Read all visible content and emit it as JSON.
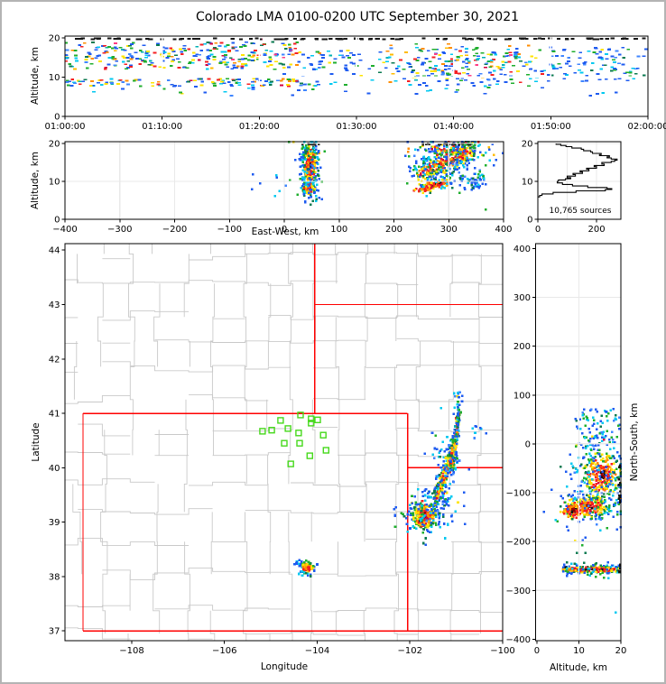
{
  "title": "Colorado LMA 0100-0200 UTC September 30, 2021",
  "labels": {
    "altitude": "Altitude, km",
    "east_west": "East-West, km",
    "latitude": "Latitude",
    "longitude": "Longitude",
    "north_south": "North-South, km",
    "sources": "10,765 sources"
  },
  "palette_colors": {
    "blue": "#1e5bf0",
    "blue2": "#3f86ff",
    "cyan": "#00c8f0",
    "teal": "#00b0b4",
    "green": "#1fae2e",
    "dgreen": "#0b7a50",
    "yellow": "#ffe400",
    "gold": "#ffbb00",
    "orange": "#ff8c00",
    "red": "#f51f22",
    "crimson": "#d40040",
    "dred": "#9e0000",
    "black": "#141414",
    "magenta": "#ff3d85"
  },
  "map_colors": {
    "county_line": "#c9c9c9",
    "state_line": "#ff0000",
    "station": "#46d91c",
    "grid": "#e9e9e9",
    "grid_white": "#ffffff",
    "frame": "#000000",
    "outer_border": "#b4b4b4"
  },
  "chart_data": [
    {
      "id": "tp",
      "type": "scatter",
      "title": "",
      "xlabel": "",
      "ylabel": "Altitude, km",
      "xlim_minutes": [
        0,
        60
      ],
      "ylim": [
        0,
        20.5
      ],
      "xticks": {
        "values": [
          0,
          10,
          20,
          30,
          40,
          50,
          60
        ],
        "labels": [
          "01:00:00",
          "01:10:00",
          "01:20:00",
          "01:30:00",
          "01:40:00",
          "01:50:00",
          "02:00:00"
        ]
      },
      "yticks": {
        "values": [
          0,
          10,
          20
        ],
        "labels": [
          "0",
          "10",
          "20"
        ]
      },
      "grid": {
        "x": [
          10,
          20,
          30,
          40,
          50
        ],
        "y": [
          10
        ],
        "white": true
      },
      "clusters": [
        {
          "kind": "uniform",
          "x0": 0,
          "x1": 24,
          "y0": 12,
          "y1": 19,
          "n": 190,
          "palette": "mix"
        },
        {
          "kind": "gauss",
          "cx": 12,
          "cy": 15.6,
          "sx": 7,
          "sy": 1.6,
          "n": 110,
          "palette": "mix"
        },
        {
          "kind": "uniform",
          "x0": 0,
          "x1": 26,
          "y0": 7.6,
          "y1": 9.6,
          "n": 120,
          "palette": "mix"
        },
        {
          "kind": "uniform",
          "x0": 24,
          "x1": 33,
          "y0": 8,
          "y1": 17,
          "n": 50,
          "palette": "cold"
        },
        {
          "kind": "uniform",
          "x0": 33,
          "x1": 50,
          "y0": 7.5,
          "y1": 18.5,
          "n": 150,
          "palette": "mix"
        },
        {
          "kind": "gauss",
          "cx": 41,
          "cy": 12.5,
          "sx": 4.5,
          "sy": 2.6,
          "n": 100,
          "palette": "mix"
        },
        {
          "kind": "uniform",
          "x0": 50,
          "x1": 60,
          "y0": 9,
          "y1": 18,
          "n": 90,
          "palette": "cold"
        },
        {
          "kind": "uniform",
          "x0": 2,
          "x1": 58,
          "y0": 5.2,
          "y1": 7.4,
          "n": 28,
          "palette": "cold"
        },
        {
          "kind": "uniform",
          "x0": 0,
          "x1": 60,
          "y0": 19.65,
          "y1": 19.95,
          "n": 115,
          "palette": "black"
        }
      ]
    },
    {
      "id": "ew",
      "type": "scatter",
      "xlabel": "East-West, km",
      "ylabel": "Altitude, km",
      "xlim": [
        -400,
        400
      ],
      "ylim": [
        0,
        20.5
      ],
      "xticks": {
        "values": [
          -400,
          -300,
          -200,
          -100,
          0,
          100,
          200,
          300,
          400
        ],
        "labels": [
          "−400",
          "−300",
          "−200",
          "−100",
          "0",
          "100",
          "200",
          "300",
          "400"
        ]
      },
      "yticks": {
        "values": [
          0,
          10,
          20
        ],
        "labels": [
          "0",
          "10",
          "20"
        ]
      },
      "grid": {
        "x": [
          -300,
          -200,
          -100,
          0,
          100,
          200,
          300
        ],
        "y": [
          10,
          20
        ],
        "white": false
      },
      "clusters": [
        {
          "kind": "gauss",
          "cx": 47,
          "cy": 14,
          "sx": 7,
          "sy": 3.2,
          "n": 290,
          "palette": "hot"
        },
        {
          "kind": "gauss",
          "cx": 45,
          "cy": 8.3,
          "sx": 6.5,
          "sy": 1.1,
          "n": 85,
          "palette": "hot"
        },
        {
          "kind": "gauss",
          "cx": 46,
          "cy": 12,
          "sx": 11,
          "sy": 4.5,
          "n": 65,
          "palette": "cold"
        },
        {
          "kind": "uniform",
          "x0": -60,
          "x1": 15,
          "y0": 6,
          "y1": 12,
          "n": 9,
          "palette": "cold"
        },
        {
          "kind": "diag",
          "x0": 248,
          "y0": 12,
          "x1": 342,
          "y1": 18.3,
          "swx": 24,
          "swy": 1.8,
          "n": 380,
          "palette": "hot"
        },
        {
          "kind": "gauss",
          "cx": 300,
          "cy": 18.7,
          "sx": 30,
          "sy": 1.0,
          "n": 100,
          "palette": "mix"
        },
        {
          "kind": "diag",
          "x0": 242,
          "y0": 7.8,
          "x1": 298,
          "y1": 10,
          "swx": 15,
          "swy": 0.55,
          "n": 115,
          "palette": "hot",
          "core": true
        },
        {
          "kind": "gauss",
          "cx": 298,
          "cy": 13.5,
          "sx": 40,
          "sy": 3.8,
          "n": 125,
          "palette": "cold"
        },
        {
          "kind": "gauss",
          "cx": 352,
          "cy": 10,
          "sx": 8,
          "sy": 1.2,
          "n": 38,
          "palette": "cold"
        },
        {
          "kind": "uniform",
          "x0": 250,
          "x1": 360,
          "y0": 19.7,
          "y1": 19.95,
          "n": 20,
          "palette": "black"
        },
        {
          "kind": "uniform",
          "x0": 25,
          "x1": 70,
          "y0": 19.7,
          "y1": 19.95,
          "n": 8,
          "palette": "black"
        }
      ]
    },
    {
      "id": "hs",
      "type": "line",
      "xlabel": "",
      "ylabel": "",
      "xlim": [
        0,
        283
      ],
      "ylim": [
        0,
        20.5
      ],
      "xticks": {
        "values": [
          0,
          200
        ],
        "labels": [
          "0",
          "200"
        ]
      },
      "yticks": {
        "values": [
          0,
          10,
          20
        ],
        "labels": [
          "0",
          "10",
          "20"
        ]
      },
      "grid": {
        "x": [
          100,
          200
        ],
        "y": [
          10,
          20
        ],
        "white": false
      },
      "annotation": "10,765 sources",
      "points_count_alt": [
        [
          0,
          5.9
        ],
        [
          6,
          6.3
        ],
        [
          14,
          6.7
        ],
        [
          52,
          7.1
        ],
        [
          130,
          7.5
        ],
        [
          230,
          7.9
        ],
        [
          252,
          8.1
        ],
        [
          236,
          8.4
        ],
        [
          170,
          8.8
        ],
        [
          118,
          9.2
        ],
        [
          84,
          9.6
        ],
        [
          66,
          10.0
        ],
        [
          70,
          10.4
        ],
        [
          94,
          10.7
        ],
        [
          112,
          11.0
        ],
        [
          100,
          11.4
        ],
        [
          128,
          11.8
        ],
        [
          120,
          12.1
        ],
        [
          152,
          12.5
        ],
        [
          144,
          12.8
        ],
        [
          174,
          13.2
        ],
        [
          166,
          13.5
        ],
        [
          200,
          13.9
        ],
        [
          192,
          14.2
        ],
        [
          226,
          14.6
        ],
        [
          218,
          15.0
        ],
        [
          250,
          15.3
        ],
        [
          262,
          15.6
        ],
        [
          270,
          15.9
        ],
        [
          250,
          16.2
        ],
        [
          236,
          16.5
        ],
        [
          244,
          16.8
        ],
        [
          210,
          17.1
        ],
        [
          216,
          17.4
        ],
        [
          186,
          17.8
        ],
        [
          180,
          18.1
        ],
        [
          156,
          18.5
        ],
        [
          148,
          18.8
        ],
        [
          116,
          19.2
        ],
        [
          96,
          19.5
        ],
        [
          78,
          19.8
        ],
        [
          62,
          20.0
        ]
      ]
    },
    {
      "id": "mp",
      "type": "scatter",
      "xlabel": "Longitude",
      "ylabel": "Latitude",
      "xlim": [
        -109.44,
        -100
      ],
      "ylim": [
        36.82,
        44.12
      ],
      "xticks": {
        "values": [
          -108,
          -106,
          -104,
          -102,
          -100
        ],
        "labels": [
          "−108",
          "−106",
          "−104",
          "−102",
          "−100"
        ]
      },
      "yticks": {
        "values": [
          37,
          38,
          39,
          40,
          41,
          42,
          43,
          44
        ],
        "labels": [
          "37",
          "38",
          "39",
          "40",
          "41",
          "42",
          "43",
          "44"
        ]
      },
      "grid": {
        "x": [],
        "y": [],
        "white": false
      },
      "state_borders": [
        [
          [
            -109.05,
            37
          ],
          [
            -109.05,
            41
          ]
        ],
        [
          [
            -109.05,
            41
          ],
          [
            -102.05,
            41
          ]
        ],
        [
          [
            -102.05,
            41
          ],
          [
            -102.05,
            37
          ]
        ],
        [
          [
            -109.05,
            37
          ],
          [
            -100,
            37
          ]
        ],
        [
          [
            -104.05,
            44.12
          ],
          [
            -104.05,
            41
          ]
        ],
        [
          [
            -104.05,
            43
          ],
          [
            -100,
            43
          ]
        ],
        [
          [
            -102.05,
            40
          ],
          [
            -100,
            40
          ]
        ]
      ],
      "stations": [
        [
          -104.36,
          40.97
        ],
        [
          -104.79,
          40.87
        ],
        [
          -104.13,
          40.9
        ],
        [
          -103.99,
          40.88
        ],
        [
          -104.13,
          40.82
        ],
        [
          -104.98,
          40.69
        ],
        [
          -104.63,
          40.72
        ],
        [
          -105.18,
          40.67
        ],
        [
          -104.4,
          40.64
        ],
        [
          -104.71,
          40.45
        ],
        [
          -104.38,
          40.45
        ],
        [
          -103.87,
          40.6
        ],
        [
          -103.81,
          40.32
        ],
        [
          -104.16,
          40.22
        ],
        [
          -104.57,
          40.07
        ]
      ],
      "clusters": [
        {
          "kind": "gauss",
          "cx": -104.21,
          "cy": 38.16,
          "sx": 0.075,
          "sy": 0.06,
          "n": 115,
          "palette": "hot"
        },
        {
          "kind": "uniform",
          "x0": -104.52,
          "x1": -104.3,
          "y0": 38.08,
          "y1": 38.28,
          "n": 10,
          "palette": "cold"
        },
        {
          "kind": "gauss",
          "cx": -101.68,
          "cy": 39.12,
          "sx": 0.14,
          "sy": 0.15,
          "n": 230,
          "palette": "hot"
        },
        {
          "kind": "gauss",
          "cx": -101.77,
          "cy": 39.02,
          "sx": 0.045,
          "sy": 0.04,
          "n": 70,
          "palette": "hot",
          "core": true
        },
        {
          "kind": "gauss",
          "cx": -101.52,
          "cy": 39.2,
          "sx": 0.26,
          "sy": 0.22,
          "n": 85,
          "palette": "cold"
        },
        {
          "kind": "uniform",
          "x0": -102.35,
          "x1": -101.95,
          "y0": 38.85,
          "y1": 39.3,
          "n": 10,
          "palette": "cold"
        },
        {
          "kind": "diag",
          "x0": -101.45,
          "y0": 39.42,
          "x1": -101.0,
          "y1": 40.48,
          "swx": 0.085,
          "swy": 0.12,
          "n": 235,
          "palette": "hot"
        },
        {
          "kind": "diag",
          "x0": -101.0,
          "y0": 40.5,
          "x1": -100.95,
          "y1": 41.05,
          "swx": 0.07,
          "swy": 0.1,
          "n": 85,
          "palette": "mix"
        },
        {
          "kind": "gauss",
          "cx": -101.12,
          "cy": 40.1,
          "sx": 0.05,
          "sy": 0.07,
          "n": 55,
          "palette": "hot"
        },
        {
          "kind": "gauss",
          "cx": -101.2,
          "cy": 40.0,
          "sx": 0.16,
          "sy": 0.45,
          "n": 70,
          "palette": "cold"
        },
        {
          "kind": "uniform",
          "x0": -101.05,
          "x1": -100.8,
          "y0": 41.1,
          "y1": 41.4,
          "n": 10,
          "palette": "cold"
        },
        {
          "kind": "uniform",
          "x0": -100.65,
          "x1": -100.35,
          "y0": 40.45,
          "y1": 40.8,
          "n": 8,
          "palette": "cold"
        }
      ]
    },
    {
      "id": "ns",
      "type": "scatter",
      "xlabel": "Altitude, km",
      "ylabel": "North-South, km",
      "xlim": [
        -0.3,
        20
      ],
      "ylim": [
        -403,
        410
      ],
      "xticks": {
        "values": [
          0,
          10,
          20
        ],
        "labels": [
          "0",
          "10",
          "20"
        ]
      },
      "yticks": {
        "values": [
          400,
          300,
          200,
          100,
          0,
          -100,
          -200,
          -300,
          -400
        ],
        "labels": [
          "400",
          "300",
          "200",
          "100",
          "0",
          "−100",
          "−200",
          "−300",
          "−400"
        ]
      },
      "grid": {
        "x": [
          10
        ],
        "y": [
          -300,
          -200,
          -100,
          0,
          100,
          200,
          300
        ],
        "white": false
      },
      "clusters": [
        {
          "kind": "uniform",
          "x0": 9,
          "x1": 19.8,
          "y0": -5,
          "y1": 72,
          "n": 85,
          "palette": "cold"
        },
        {
          "kind": "gauss",
          "cx": 15.5,
          "cy": -62,
          "sx": 2.6,
          "sy": 26,
          "n": 280,
          "palette": "hot"
        },
        {
          "kind": "gauss",
          "cx": 12.5,
          "cy": -128,
          "sx": 2.8,
          "sy": 13,
          "n": 225,
          "palette": "hot"
        },
        {
          "kind": "gauss",
          "cx": 8.7,
          "cy": -136,
          "sx": 1.1,
          "sy": 7,
          "n": 90,
          "palette": "hot",
          "core": true
        },
        {
          "kind": "gauss",
          "cx": 13,
          "cy": -85,
          "sx": 4.2,
          "sy": 48,
          "n": 130,
          "palette": "cold"
        },
        {
          "kind": "hband",
          "x0": 6.2,
          "x1": 19.8,
          "cy": -257,
          "sy": 4.0,
          "n": 225,
          "palette": "hot"
        },
        {
          "kind": "uniform",
          "x0": 6,
          "x1": 19.8,
          "y0": -276,
          "y1": -242,
          "n": 35,
          "palette": "cold"
        },
        {
          "kind": "points",
          "pts": [
            [
              18.8,
              -345
            ]
          ],
          "palette": "cold"
        },
        {
          "kind": "uniform",
          "x0": 7,
          "x1": 12,
          "y0": -225,
          "y1": -170,
          "n": 7,
          "palette": "cold"
        },
        {
          "kind": "uniform",
          "x0": 19.5,
          "x1": 19.9,
          "y0": -160,
          "y1": -35,
          "n": 12,
          "palette": "black"
        },
        {
          "kind": "uniform",
          "x0": 19.5,
          "x1": 19.9,
          "y0": -268,
          "y1": -247,
          "n": 5,
          "palette": "black"
        }
      ]
    }
  ]
}
